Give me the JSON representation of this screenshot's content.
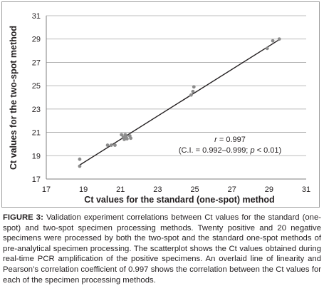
{
  "chart_data": {
    "type": "scatter",
    "xlabel": "Ct values for the standard (one-spot) method",
    "ylabel": "Ct values for the two-spot method",
    "xlim": [
      17,
      31
    ],
    "ylim": [
      17,
      31
    ],
    "xticks": [
      "17",
      "19",
      "21",
      "23",
      "25",
      "27",
      "29",
      "31"
    ],
    "yticks": [
      "17",
      "19",
      "21",
      "23",
      "25",
      "27",
      "29",
      "31"
    ],
    "grid": "horizontal",
    "marker_color": "#8c8c8c",
    "line_color": "#231f20",
    "points": [
      {
        "x": 18.8,
        "y": 18.7
      },
      {
        "x": 18.8,
        "y": 18.1
      },
      {
        "x": 20.3,
        "y": 19.9
      },
      {
        "x": 20.5,
        "y": 19.9
      },
      {
        "x": 20.7,
        "y": 19.9
      },
      {
        "x": 21.05,
        "y": 20.8
      },
      {
        "x": 21.15,
        "y": 20.6
      },
      {
        "x": 21.2,
        "y": 20.4
      },
      {
        "x": 21.25,
        "y": 20.8
      },
      {
        "x": 21.3,
        "y": 20.6
      },
      {
        "x": 21.35,
        "y": 20.45
      },
      {
        "x": 21.5,
        "y": 20.7
      },
      {
        "x": 21.55,
        "y": 20.5
      },
      {
        "x": 24.8,
        "y": 24.2
      },
      {
        "x": 24.9,
        "y": 24.5
      },
      {
        "x": 24.95,
        "y": 24.9
      },
      {
        "x": 28.9,
        "y": 28.2
      },
      {
        "x": 29.2,
        "y": 28.85
      },
      {
        "x": 29.55,
        "y": 29.0
      }
    ],
    "fit_line": {
      "x": [
        18.8,
        29.6
      ],
      "y": [
        18.2,
        29.0
      ]
    },
    "annotation": {
      "r_line": "r = 0.997",
      "ci_prefix": "(C.I. = 0.992–0.999; ",
      "p_var": "p",
      "ci_suffix": " < 0.01)"
    }
  },
  "caption": {
    "label": "FIGURE 3:",
    "text": " Validation experiment correlations between Ct values for the standard (one-spot) and two-spot specimen processing methods. Twenty positive and 20 negative specimens were processed by both the two-spot and the standard one-spot methods of pre-analytical specimen processing. The scatterplot shows the Ct values obtained during real-time PCR amplification of the positive specimens. An overlaid line of linearity and Pearson’s correlation coefficient of 0.997 shows the correlation between the Ct values for each of the specimen processing methods."
  }
}
